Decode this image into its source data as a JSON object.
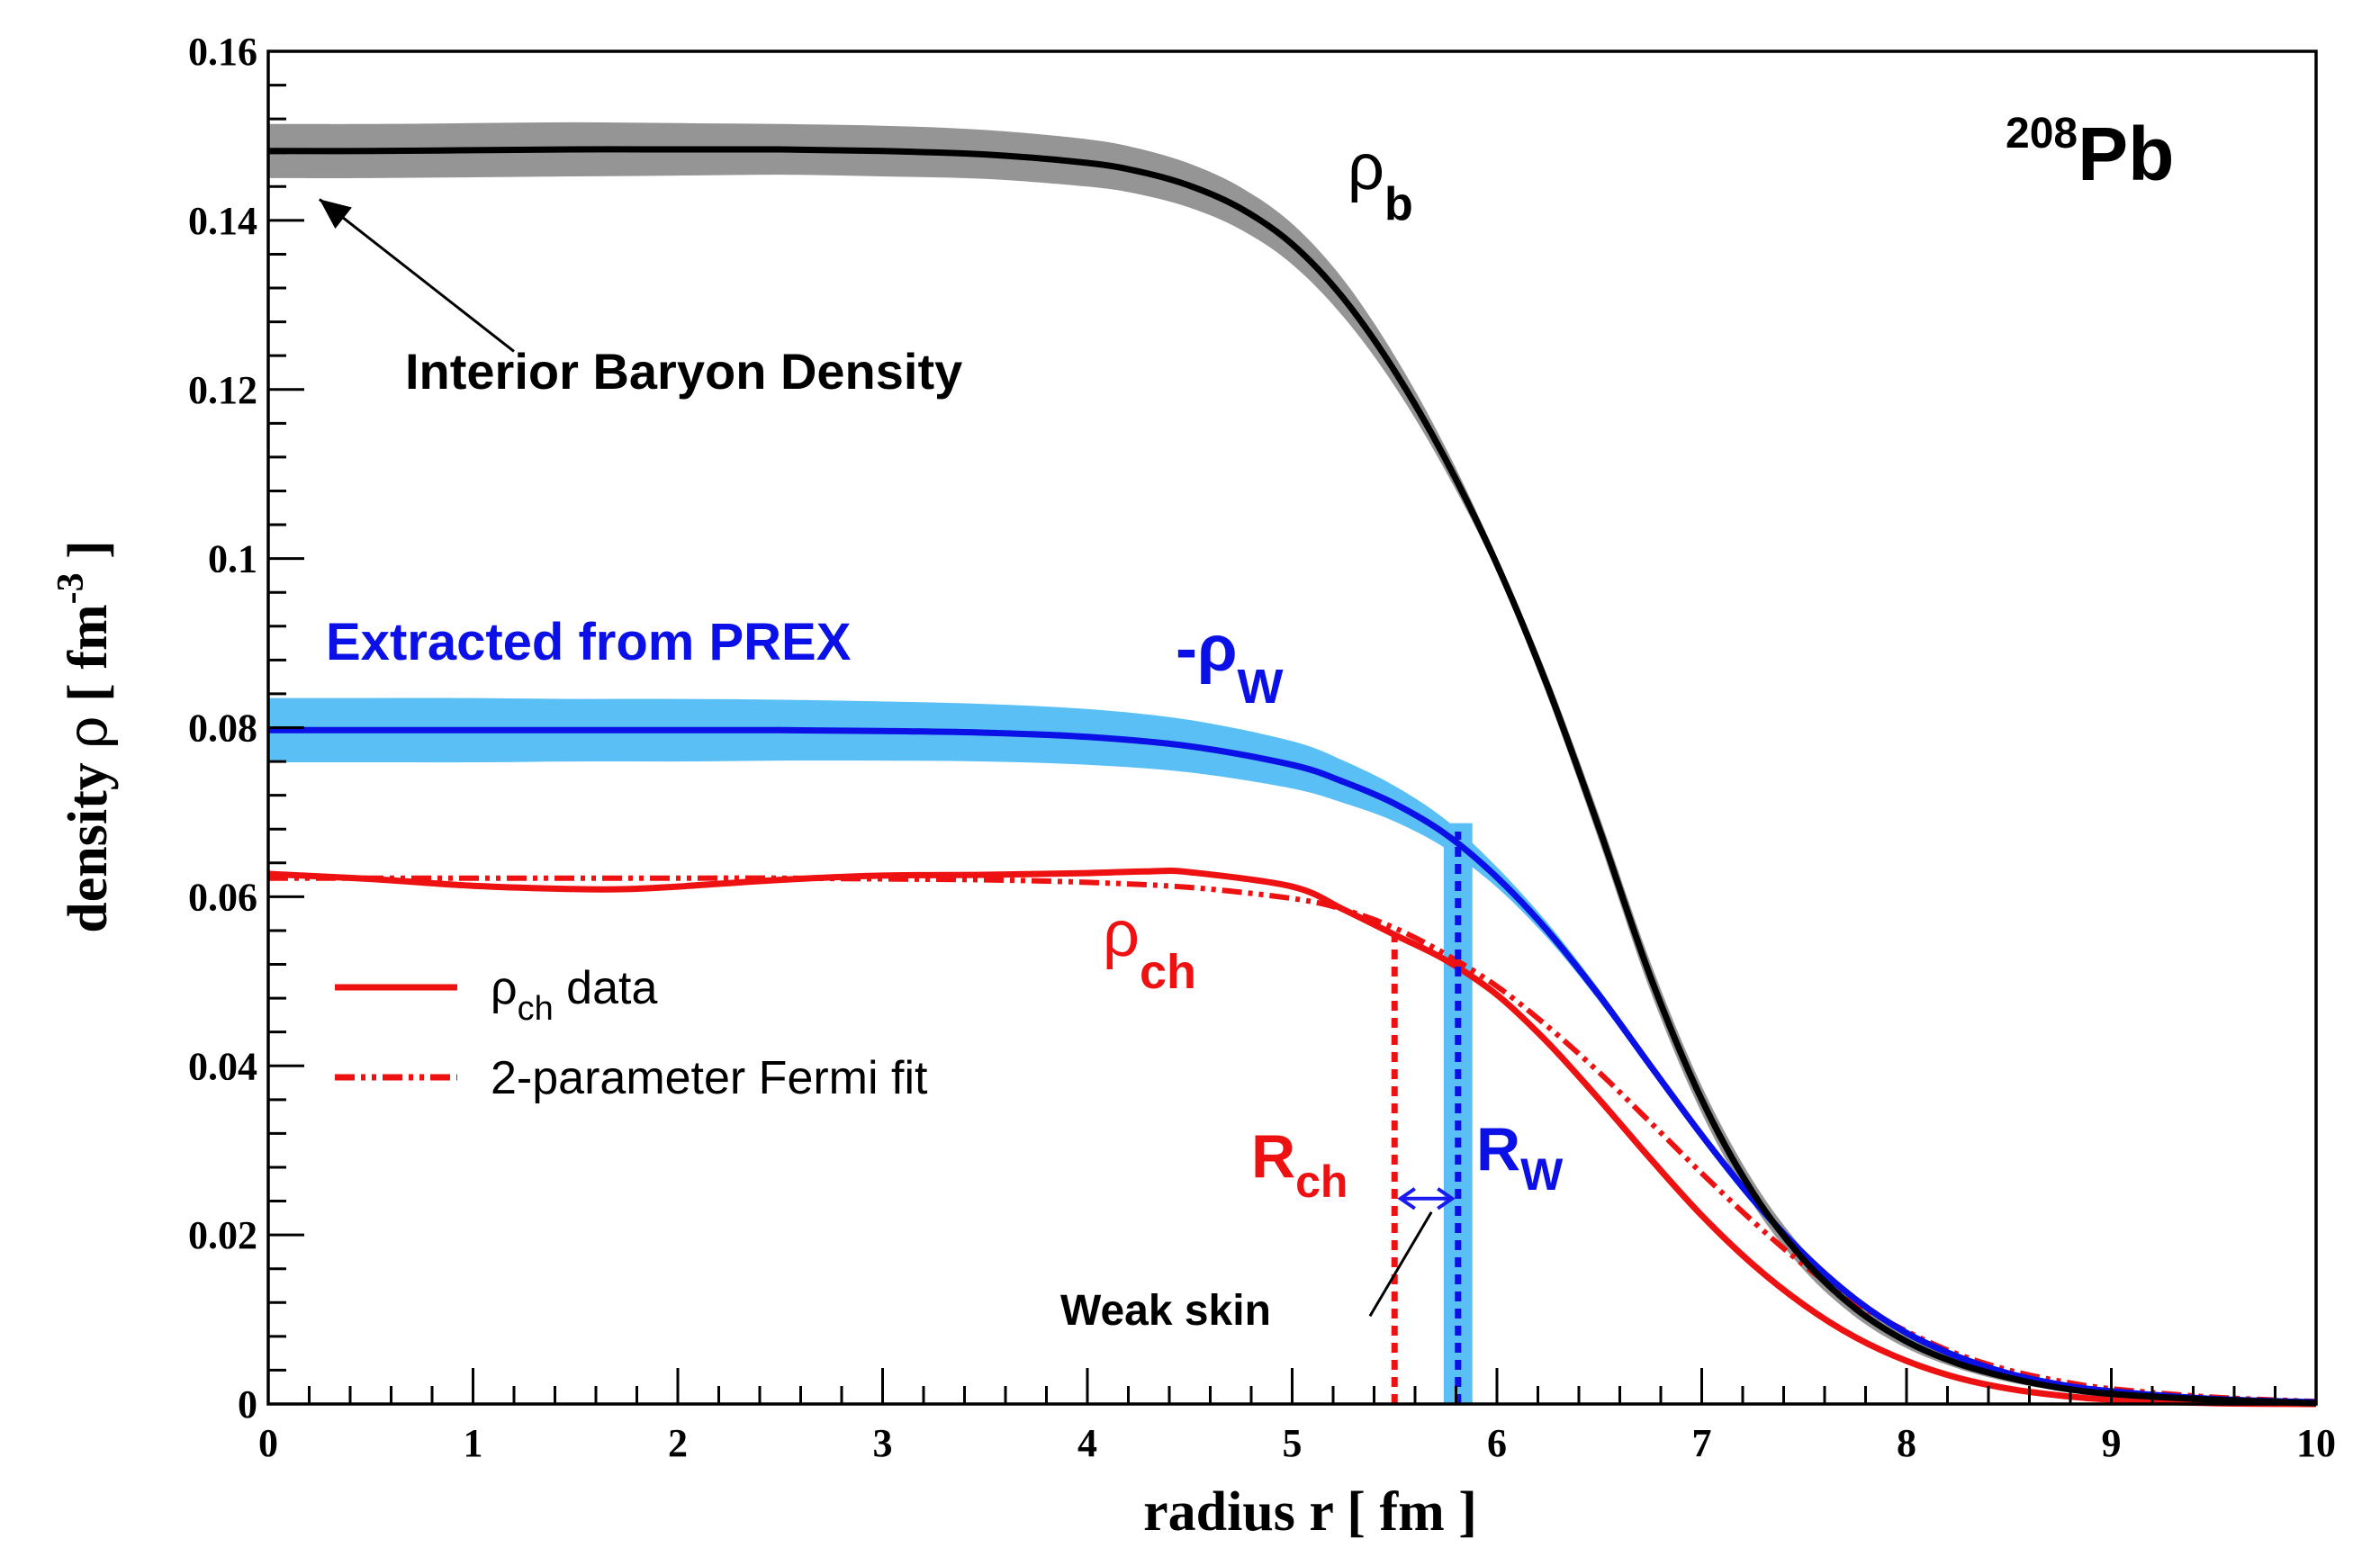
{
  "chart_data": {
    "type": "line",
    "title": "",
    "nucleus": {
      "mass_number": "208",
      "symbol": "Pb"
    },
    "xlabel": "radius r [ fm ]",
    "ylabel": {
      "word": "density",
      "symbol": "ρ",
      "unit_open": "[ fm",
      "unit_exp": "-3",
      "unit_close": "]"
    },
    "xlim": [
      0,
      10
    ],
    "ylim": [
      0,
      0.16
    ],
    "x_ticks": [
      "0",
      "1",
      "2",
      "3",
      "4",
      "5",
      "6",
      "7",
      "8",
      "9",
      "10"
    ],
    "y_ticks": [
      "0",
      "0.02",
      "0.04",
      "0.06",
      "0.08",
      "0.1",
      "0.12",
      "0.14",
      "0.16"
    ],
    "grid": false,
    "colors": {
      "baryon": "#000000",
      "baryon_band": "#8a8a8a",
      "weak": "#0a10e6",
      "weak_band": "#59bff5",
      "charge": "#ee1111",
      "skin_arrow": "#1a1af0",
      "annotation": "#000000"
    },
    "series": [
      {
        "name": "ρb",
        "style": "solid",
        "x": [
          0,
          0.5,
          1,
          1.5,
          2,
          2.5,
          3,
          3.5,
          4,
          4.25,
          4.5,
          4.75,
          5,
          5.25,
          5.5,
          5.75,
          6,
          6.25,
          6.5,
          6.75,
          7,
          7.25,
          7.5,
          7.75,
          8,
          8.25,
          8.5,
          8.75,
          9,
          9.5,
          10
        ],
        "y": [
          0.1482,
          0.1482,
          0.1483,
          0.1484,
          0.1484,
          0.1484,
          0.1482,
          0.1478,
          0.1468,
          0.1458,
          0.1441,
          0.1414,
          0.1372,
          0.1308,
          0.1222,
          0.1117,
          0.0993,
          0.0847,
          0.068,
          0.0505,
          0.036,
          0.025,
          0.017,
          0.0113,
          0.0074,
          0.0048,
          0.0031,
          0.0019,
          0.0012,
          0.0005,
          0.0001
        ],
        "band_half_width": [
          0.0032,
          0.0032,
          0.0032,
          0.0032,
          0.0031,
          0.003,
          0.003,
          0.0029,
          0.0028,
          0.0027,
          0.0026,
          0.0025,
          0.0024,
          0.0022,
          0.0018,
          0.0014,
          0.0009,
          0.0012,
          0.0015,
          0.0017,
          0.0016,
          0.0014,
          0.0012,
          0.001,
          0.0008,
          0.0006,
          0.0005,
          0.0003,
          0.0002,
          0.0001,
          0.0001
        ]
      },
      {
        "name": "-ρW",
        "style": "solid",
        "x": [
          0,
          0.5,
          1,
          1.5,
          2,
          2.5,
          3,
          3.5,
          4,
          4.5,
          5,
          5.25,
          5.5,
          5.75,
          6,
          6.25,
          6.5,
          6.75,
          7,
          7.25,
          7.5,
          7.75,
          8,
          8.25,
          8.5,
          8.75,
          9,
          9.5,
          10
        ],
        "y": [
          0.0797,
          0.0797,
          0.0797,
          0.0797,
          0.0797,
          0.0797,
          0.0796,
          0.0794,
          0.0789,
          0.0778,
          0.0756,
          0.0736,
          0.071,
          0.0674,
          0.0623,
          0.0559,
          0.0483,
          0.04,
          0.0318,
          0.0242,
          0.0177,
          0.0124,
          0.0084,
          0.0056,
          0.0036,
          0.0023,
          0.0015,
          0.0006,
          0.0002
        ],
        "band_half_width": [
          0.0038,
          0.0038,
          0.0038,
          0.0037,
          0.0037,
          0.0036,
          0.0035,
          0.0034,
          0.0033,
          0.0031,
          0.0028,
          0.0025,
          0.0021,
          0.0017,
          0.0012,
          0.0009,
          0.0007,
          0.0006,
          0.0006,
          0.0006,
          0.0005,
          0.0004,
          0.0003,
          0.0003,
          0.0002,
          0.0002,
          0.0001,
          0.0001,
          0.0001
        ]
      },
      {
        "name": "ρch data",
        "style": "solid",
        "x": [
          0,
          0.5,
          1,
          1.5,
          1.75,
          2,
          2.5,
          3,
          3.5,
          4,
          4.3,
          4.5,
          5,
          5.25,
          5.5,
          5.75,
          6,
          6.25,
          6.5,
          6.75,
          7,
          7.25,
          7.5,
          7.75,
          8,
          8.25,
          8.5,
          8.75,
          9,
          9.5,
          10
        ],
        "y": [
          0.0627,
          0.0621,
          0.0613,
          0.0609,
          0.0609,
          0.0612,
          0.062,
          0.0625,
          0.0626,
          0.0628,
          0.063,
          0.0629,
          0.0612,
          0.0585,
          0.0555,
          0.0525,
          0.0484,
          0.0427,
          0.036,
          0.029,
          0.0223,
          0.0165,
          0.0117,
          0.0079,
          0.0051,
          0.0031,
          0.0018,
          0.001,
          0.0005,
          0.0001,
          0.0
        ]
      },
      {
        "name": "2-parameter Fermi fit",
        "style": "dash-dot-dot",
        "x": [
          0,
          0.5,
          1,
          1.5,
          2,
          2.5,
          3,
          3.5,
          4,
          4.5,
          5,
          5.25,
          5.5,
          5.75,
          6,
          6.25,
          6.5,
          6.75,
          7,
          7.25,
          7.5,
          7.75,
          8,
          8.25,
          8.5,
          8.75,
          9,
          9.5,
          10
        ],
        "y": [
          0.0622,
          0.0622,
          0.0622,
          0.0622,
          0.0622,
          0.0622,
          0.0621,
          0.062,
          0.0617,
          0.0611,
          0.0598,
          0.0585,
          0.0563,
          0.0532,
          0.0494,
          0.0446,
          0.0392,
          0.0333,
          0.0273,
          0.0216,
          0.0164,
          0.012,
          0.0086,
          0.0059,
          0.004,
          0.0027,
          0.0018,
          0.0008,
          0.0003
        ]
      }
    ],
    "radii": {
      "R_ch": 5.5,
      "R_W": 5.81,
      "R_W_band": [
        5.74,
        5.88
      ],
      "R_W_band_top": 0.0687
    },
    "skin_arrow": {
      "x_from": 5.52,
      "x_to": 5.79,
      "y": 0.0243
    },
    "annotations": {
      "interior": "Interior Baryon Density",
      "interior_arrow": {
        "from_r": 1.2,
        "from_rho": 0.1245,
        "to_r": 0.25,
        "to_rho": 0.1425
      },
      "extracted": "Extracted from PREX",
      "skin": "Weak skin",
      "skin_pointer": {
        "from_r": 5.38,
        "from_rho": 0.0104,
        "to_r": 5.68,
        "to_rho": 0.0227
      }
    },
    "labels": {
      "rho": "ρ",
      "b": "b",
      "minus_rho": "-ρ",
      "W": "W",
      "ch": "ch",
      "R": "R"
    },
    "legend": {
      "position": "middle-left",
      "items": [
        {
          "symbol": "ρ",
          "sub": "ch",
          "text": " data",
          "style": "solid"
        },
        {
          "symbol": "",
          "sub": "",
          "text": "2-parameter Fermi fit",
          "style": "dash-dot-dot"
        }
      ]
    }
  }
}
